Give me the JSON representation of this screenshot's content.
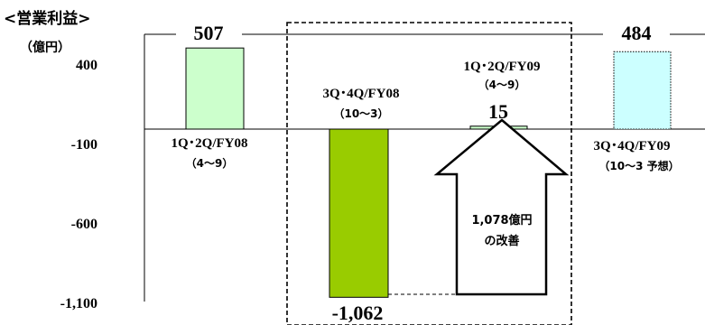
{
  "chart_data": {
    "type": "bar",
    "unit_label": "<営業利益>",
    "unit_sublabel": "（億円）",
    "ylim": [
      -1100,
      500
    ],
    "yticks": [
      400,
      -100,
      -600,
      -1100
    ],
    "ytick_labels": [
      "400",
      "-100",
      "-600",
      "-1,100"
    ],
    "categories": [
      {
        "line1": "1Q･2Q/FY08",
        "line2": "（4〜9）"
      },
      {
        "line1": "3Q･4Q/FY08",
        "line2": "（10〜3）"
      },
      {
        "line1": "1Q･2Q/FY09",
        "line2": "（4〜9）"
      },
      {
        "line1": "3Q･4Q/FY09",
        "line2": "（10〜3 予想）"
      }
    ],
    "values": [
      507,
      -1062,
      15,
      484
    ],
    "value_labels": [
      "507",
      "-1,062",
      "15",
      "484"
    ],
    "bar_colors": [
      "#ccffcc",
      "#99cc00",
      "#ccffcc",
      "#ccffff"
    ],
    "bar_styles": [
      "solid",
      "solid",
      "solid",
      "dotted"
    ],
    "annotation": {
      "line1": "1,078億円",
      "line2": "の改善"
    }
  }
}
